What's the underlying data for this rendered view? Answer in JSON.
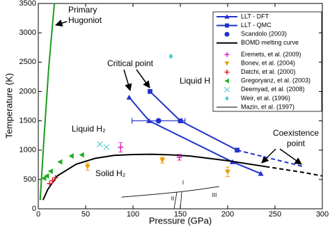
{
  "chart_data": {
    "type": "line",
    "xlabel": "Pressure (GPa)",
    "ylabel": "Temperature (K)",
    "xlim": [
      0,
      300
    ],
    "xticks": [
      0,
      50,
      100,
      150,
      200,
      250,
      300
    ],
    "ylim": [
      0,
      3500
    ],
    "yticks": [
      0,
      500,
      1000,
      1500,
      2000,
      2500,
      3000,
      3500
    ],
    "legend": "upper right",
    "series": [
      {
        "name": "LLT - DFT",
        "color": "#2233cc",
        "marker": "triangle",
        "line": "solid",
        "x": [
          96,
          117,
          205,
          235
        ],
        "values": [
          1900,
          1500,
          800,
          600
        ]
      },
      {
        "name": "LLT - QMC",
        "color": "#2233cc",
        "marker": "square",
        "line": "solid",
        "dash_from": 2,
        "x": [
          118,
          150,
          210,
          280
        ],
        "values": [
          2000,
          1500,
          1000,
          720
        ]
      },
      {
        "name": "Scandolo (2003)",
        "color": "#2233cc",
        "marker": "circle",
        "line": "none",
        "x": [
          127
        ],
        "values": [
          1500
        ],
        "x_errors": [
          28
        ]
      },
      {
        "name": "BOMD melting curve",
        "color": "#000000",
        "marker": "none",
        "line": "solid",
        "dash_from": 13,
        "x": [
          5,
          10,
          20,
          40,
          60,
          80,
          100,
          120,
          140,
          160,
          180,
          200,
          220,
          240,
          260,
          280,
          300
        ],
        "values": [
          150,
          330,
          560,
          760,
          860,
          910,
          925,
          930,
          920,
          900,
          860,
          820,
          770,
          720,
          670,
          620,
          560
        ]
      },
      {
        "name": "Eremets, et al. (2009)",
        "color": "#e020c0",
        "marker": "plus",
        "line": "none",
        "x": [
          87,
          149
        ],
        "values": [
          1050,
          880
        ],
        "errors": [
          80,
          50
        ]
      },
      {
        "name": "Bonev, et al. (2004)",
        "color": "#e8a000",
        "marker": "down",
        "line": "none",
        "x": [
          52,
          131,
          200
        ],
        "values": [
          720,
          830,
          630
        ],
        "errors": [
          60,
          50,
          80
        ]
      },
      {
        "name": "Datchi, et al. (2000)",
        "color": "#e02020",
        "marker": "plus",
        "line": "none",
        "x": [
          12,
          15,
          18
        ],
        "values": [
          430,
          480,
          530
        ]
      },
      {
        "name": "Gregoryanz, et al. (2003)",
        "color": "#20b020",
        "marker": "left",
        "line": "none",
        "x": [
          6,
          9,
          13,
          23,
          35,
          46
        ],
        "values": [
          520,
          560,
          640,
          800,
          900,
          920
        ]
      },
      {
        "name": "Deemyad, et al. (2008)",
        "color": "#60d0d0",
        "marker": "x",
        "line": "none",
        "x": [
          65,
          72
        ],
        "values": [
          1100,
          1050
        ]
      },
      {
        "name": "Weir, et al. (1996)",
        "color": "#40c8c8",
        "marker": "diamond",
        "line": "none",
        "x": [
          140
        ],
        "values": [
          2600
        ]
      },
      {
        "name": "Mazin, et al. (1997)",
        "color": "#000000",
        "marker": "none",
        "line": "thin",
        "x": [
          88,
          125,
          150,
          170,
          191
        ],
        "values": [
          200,
          250,
          290,
          330,
          380
        ]
      },
      {
        "color": "#1a9a1a",
        "marker": "none",
        "line": "solid",
        "x": [
          2,
          6,
          11,
          17
        ],
        "values": [
          150,
          1200,
          2400,
          3500
        ]
      }
    ],
    "annotations": [
      [
        "Primary",
        "Hugoniot"
      ],
      [
        "Critical point"
      ],
      [
        "Liquid H"
      ],
      [
        "Liquid H₂"
      ],
      [
        "Solid H₂"
      ],
      [
        "Coexistence",
        "point"
      ],
      [
        "I"
      ],
      [
        "II"
      ],
      [
        "III"
      ]
    ]
  }
}
